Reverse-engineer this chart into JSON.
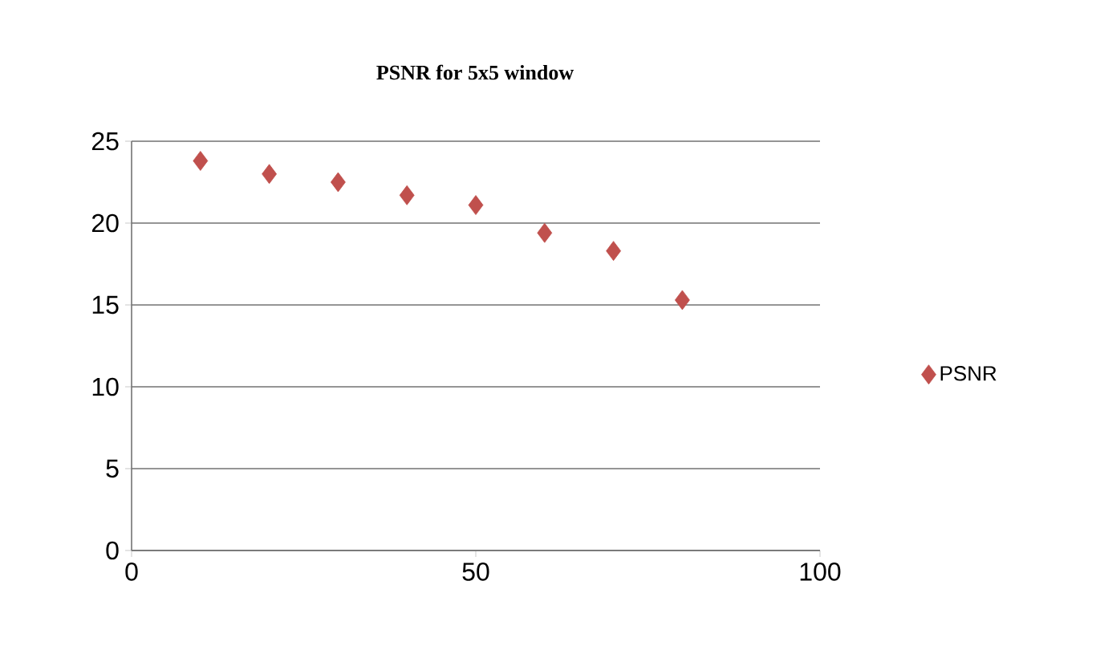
{
  "chart_data": {
    "type": "scatter",
    "title": "PSNR for 5x5 window",
    "x": [
      10,
      20,
      30,
      40,
      50,
      60,
      70,
      80
    ],
    "series": [
      {
        "name": "PSNR",
        "color": "#c0504d",
        "values": [
          23.8,
          23.0,
          22.5,
          21.7,
          21.1,
          19.4,
          18.3,
          15.3
        ]
      }
    ],
    "xlim": [
      0,
      100
    ],
    "xticks": [
      0,
      50,
      100
    ],
    "ylim": [
      0,
      25
    ],
    "yticks": [
      0,
      5,
      10,
      15,
      20,
      25
    ],
    "grid": "y",
    "legend": "right",
    "marker": "diamond"
  }
}
